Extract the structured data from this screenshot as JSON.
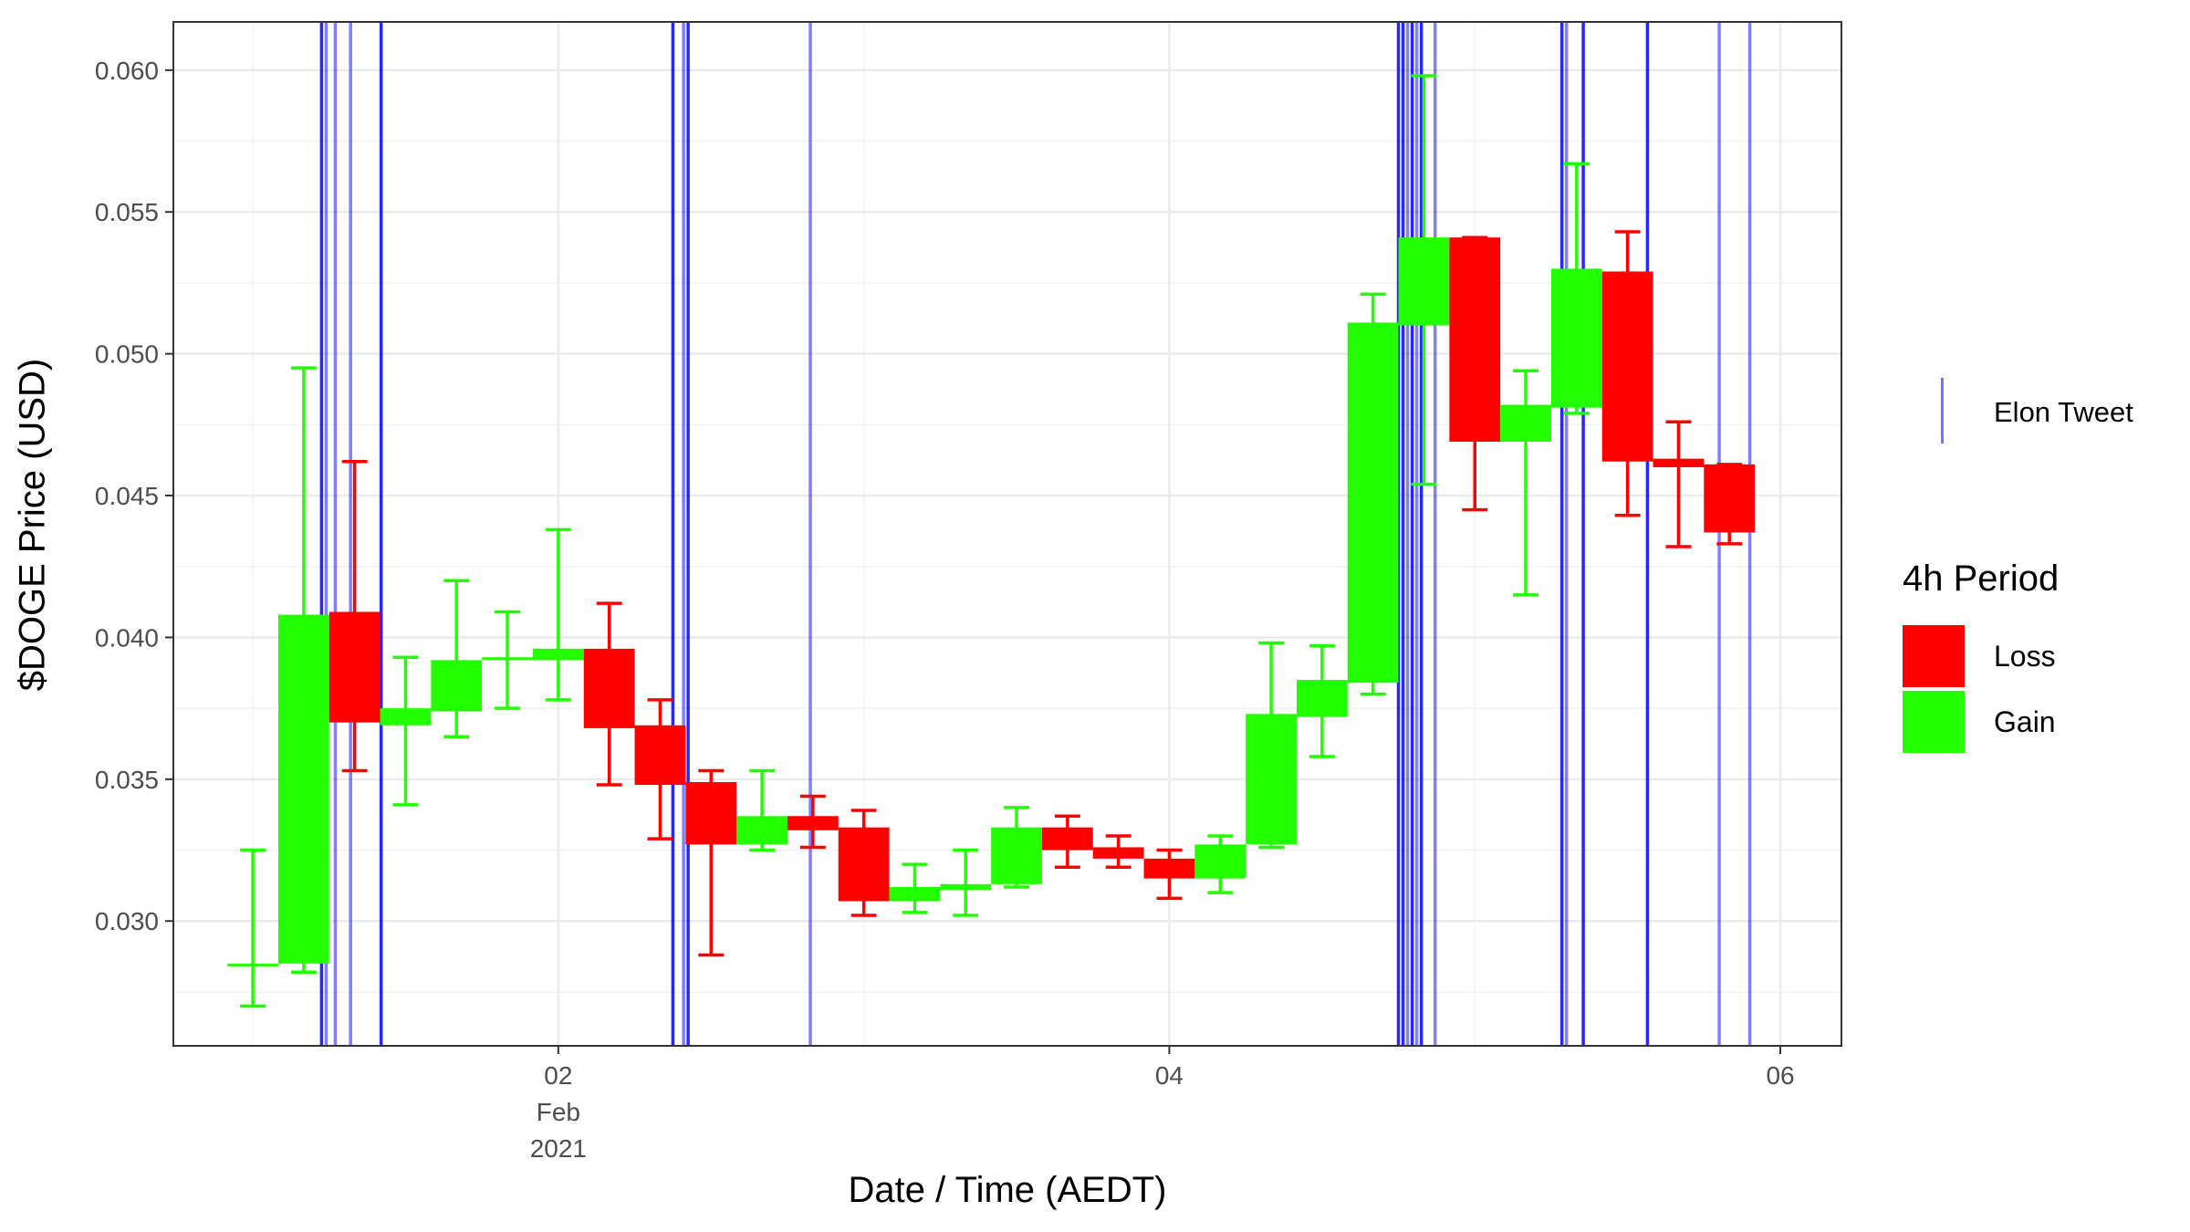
{
  "chart_data": {
    "type": "candlestick",
    "ylabel": "$DOGE Price (USD)",
    "xlabel": "Date / Time (AEDT)",
    "x_ticks": [
      {
        "label": "02",
        "sub": [
          "Feb",
          "2021"
        ],
        "day": 2
      },
      {
        "label": "04",
        "sub": [],
        "day": 4
      },
      {
        "label": "06",
        "sub": [],
        "day": 6
      }
    ],
    "y_ticks": [
      "0.030",
      "0.035",
      "0.040",
      "0.045",
      "0.050",
      "0.055",
      "0.060"
    ],
    "xlim": [
      0.74,
      6.2
    ],
    "ylim": [
      0.0256,
      0.0617
    ],
    "grid": true,
    "legend": {
      "position": "right",
      "tweet_label": "Elon Tweet",
      "title": "4h Period",
      "items": [
        {
          "label": "Loss",
          "color": "#ff0000"
        },
        {
          "label": "Gain",
          "color": "#22ff00"
        }
      ]
    },
    "colors": {
      "loss": "#ff0000",
      "gain": "#22ff00",
      "tweet": "#0000ff"
    },
    "candles": [
      {
        "t": 1.0,
        "open": 0.0285,
        "close": 0.0285,
        "high": 0.0325,
        "low": 0.027,
        "dir": "gain"
      },
      {
        "t": 1.1667,
        "open": 0.0285,
        "close": 0.0408,
        "high": 0.0495,
        "low": 0.0282,
        "dir": "gain"
      },
      {
        "t": 1.3333,
        "open": 0.0409,
        "close": 0.037,
        "high": 0.0462,
        "low": 0.0353,
        "dir": "loss"
      },
      {
        "t": 1.5,
        "open": 0.0369,
        "close": 0.0375,
        "high": 0.0393,
        "low": 0.0341,
        "dir": "gain"
      },
      {
        "t": 1.6667,
        "open": 0.0374,
        "close": 0.0392,
        "high": 0.042,
        "low": 0.0365,
        "dir": "gain"
      },
      {
        "t": 1.8333,
        "open": 0.0392,
        "close": 0.0393,
        "high": 0.0409,
        "low": 0.0375,
        "dir": "gain"
      },
      {
        "t": 2.0,
        "open": 0.0392,
        "close": 0.0396,
        "high": 0.0438,
        "low": 0.0378,
        "dir": "gain"
      },
      {
        "t": 2.1667,
        "open": 0.0396,
        "close": 0.0368,
        "high": 0.0412,
        "low": 0.0348,
        "dir": "loss"
      },
      {
        "t": 2.3333,
        "open": 0.0369,
        "close": 0.0348,
        "high": 0.0378,
        "low": 0.0329,
        "dir": "loss"
      },
      {
        "t": 2.5,
        "open": 0.0349,
        "close": 0.0327,
        "high": 0.0353,
        "low": 0.0288,
        "dir": "loss"
      },
      {
        "t": 2.6667,
        "open": 0.0327,
        "close": 0.0337,
        "high": 0.0353,
        "low": 0.0325,
        "dir": "gain"
      },
      {
        "t": 2.8333,
        "open": 0.0337,
        "close": 0.0332,
        "high": 0.0344,
        "low": 0.0326,
        "dir": "loss"
      },
      {
        "t": 3.0,
        "open": 0.0333,
        "close": 0.0307,
        "high": 0.0339,
        "low": 0.0302,
        "dir": "loss"
      },
      {
        "t": 3.1667,
        "open": 0.0307,
        "close": 0.0312,
        "high": 0.032,
        "low": 0.0303,
        "dir": "gain"
      },
      {
        "t": 3.3333,
        "open": 0.0311,
        "close": 0.0313,
        "high": 0.0325,
        "low": 0.0302,
        "dir": "gain"
      },
      {
        "t": 3.5,
        "open": 0.0313,
        "close": 0.0333,
        "high": 0.034,
        "low": 0.0312,
        "dir": "gain"
      },
      {
        "t": 3.6667,
        "open": 0.0333,
        "close": 0.0325,
        "high": 0.0337,
        "low": 0.0319,
        "dir": "loss"
      },
      {
        "t": 3.8333,
        "open": 0.0326,
        "close": 0.0322,
        "high": 0.033,
        "low": 0.0319,
        "dir": "loss"
      },
      {
        "t": 4.0,
        "open": 0.0322,
        "close": 0.0315,
        "high": 0.0325,
        "low": 0.0308,
        "dir": "loss"
      },
      {
        "t": 4.1667,
        "open": 0.0315,
        "close": 0.0327,
        "high": 0.033,
        "low": 0.031,
        "dir": "gain"
      },
      {
        "t": 4.3333,
        "open": 0.0327,
        "close": 0.0373,
        "high": 0.0398,
        "low": 0.0326,
        "dir": "gain"
      },
      {
        "t": 4.5,
        "open": 0.0372,
        "close": 0.0385,
        "high": 0.0397,
        "low": 0.0358,
        "dir": "gain"
      },
      {
        "t": 4.6667,
        "open": 0.0384,
        "close": 0.0511,
        "high": 0.0521,
        "low": 0.038,
        "dir": "gain"
      },
      {
        "t": 4.8333,
        "open": 0.051,
        "close": 0.0541,
        "high": 0.0598,
        "low": 0.0454,
        "dir": "gain"
      },
      {
        "t": 5.0,
        "open": 0.0541,
        "close": 0.0469,
        "high": 0.0541,
        "low": 0.0445,
        "dir": "loss"
      },
      {
        "t": 5.1667,
        "open": 0.0469,
        "close": 0.0482,
        "high": 0.0494,
        "low": 0.0415,
        "dir": "gain"
      },
      {
        "t": 5.3333,
        "open": 0.0481,
        "close": 0.053,
        "high": 0.0567,
        "low": 0.0479,
        "dir": "gain"
      },
      {
        "t": 5.5,
        "open": 0.0529,
        "close": 0.0462,
        "high": 0.0543,
        "low": 0.0443,
        "dir": "loss"
      },
      {
        "t": 5.6667,
        "open": 0.0463,
        "close": 0.046,
        "high": 0.0476,
        "low": 0.0432,
        "dir": "loss"
      },
      {
        "t": 5.8333,
        "open": 0.0461,
        "close": 0.0437,
        "high": 0.0461,
        "low": 0.0433,
        "dir": "loss"
      }
    ],
    "tweets": [
      {
        "t": 1.225,
        "strong": true
      },
      {
        "t": 1.24,
        "strong": false
      },
      {
        "t": 1.27,
        "strong": false
      },
      {
        "t": 1.32,
        "strong": false
      },
      {
        "t": 1.42,
        "strong": true
      },
      {
        "t": 2.375,
        "strong": true
      },
      {
        "t": 2.41,
        "strong": false
      },
      {
        "t": 2.425,
        "strong": true
      },
      {
        "t": 2.825,
        "strong": false
      },
      {
        "t": 4.75,
        "strong": true
      },
      {
        "t": 4.765,
        "strong": true
      },
      {
        "t": 4.78,
        "strong": false
      },
      {
        "t": 4.795,
        "strong": true
      },
      {
        "t": 4.81,
        "strong": false
      },
      {
        "t": 4.825,
        "strong": true
      },
      {
        "t": 4.87,
        "strong": false
      },
      {
        "t": 5.285,
        "strong": true
      },
      {
        "t": 5.3,
        "strong": false
      },
      {
        "t": 5.355,
        "strong": true
      },
      {
        "t": 5.565,
        "strong": true
      },
      {
        "t": 5.8,
        "strong": false
      },
      {
        "t": 5.9,
        "strong": false
      }
    ]
  }
}
